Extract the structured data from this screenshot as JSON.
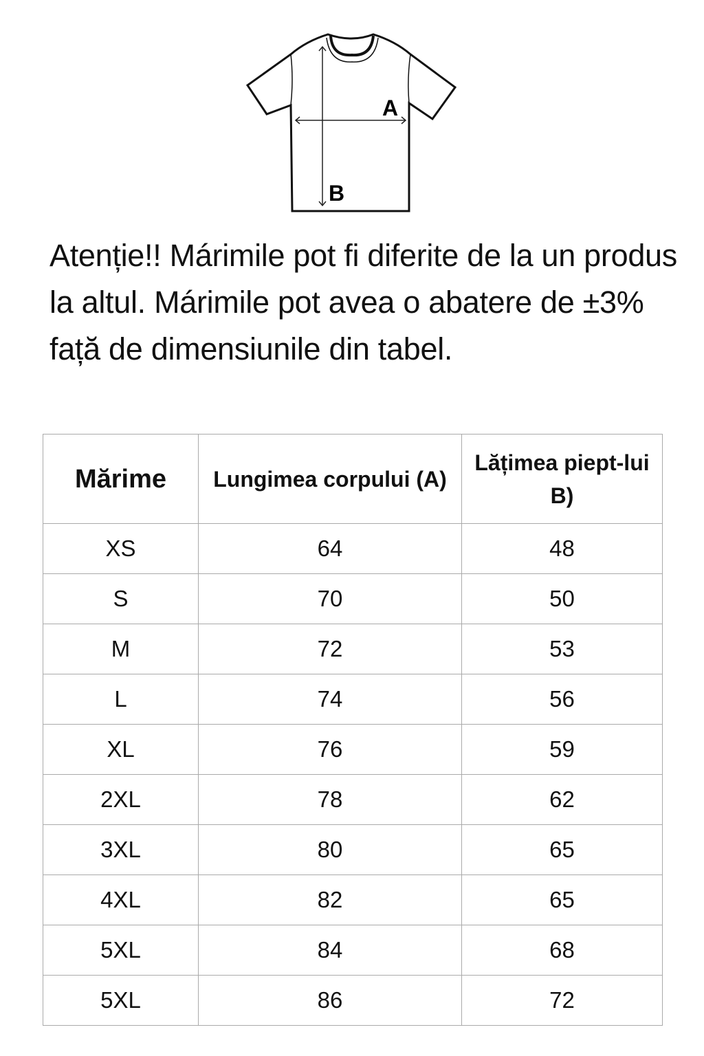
{
  "diagram": {
    "label_a": "A",
    "label_b": "B"
  },
  "note": "Atenție!! Márimile pot fi diferite de la un produs la altul. Márimile pot avea o abatere de ±3% față de dimensiunile din tabel.",
  "table": {
    "headers": [
      "Mărime",
      "Lungimea corpului (A)",
      "Lățimea piept-lui B)"
    ],
    "rows": [
      [
        "XS",
        "64",
        "48"
      ],
      [
        "S",
        "70",
        "50"
      ],
      [
        "M",
        "72",
        "53"
      ],
      [
        "L",
        "74",
        "56"
      ],
      [
        "XL",
        "76",
        "59"
      ],
      [
        "2XL",
        "78",
        "62"
      ],
      [
        "3XL",
        "80",
        "65"
      ],
      [
        "4XL",
        "82",
        "65"
      ],
      [
        "5XL",
        "84",
        "68"
      ],
      [
        "5XL",
        "86",
        "72"
      ]
    ]
  }
}
